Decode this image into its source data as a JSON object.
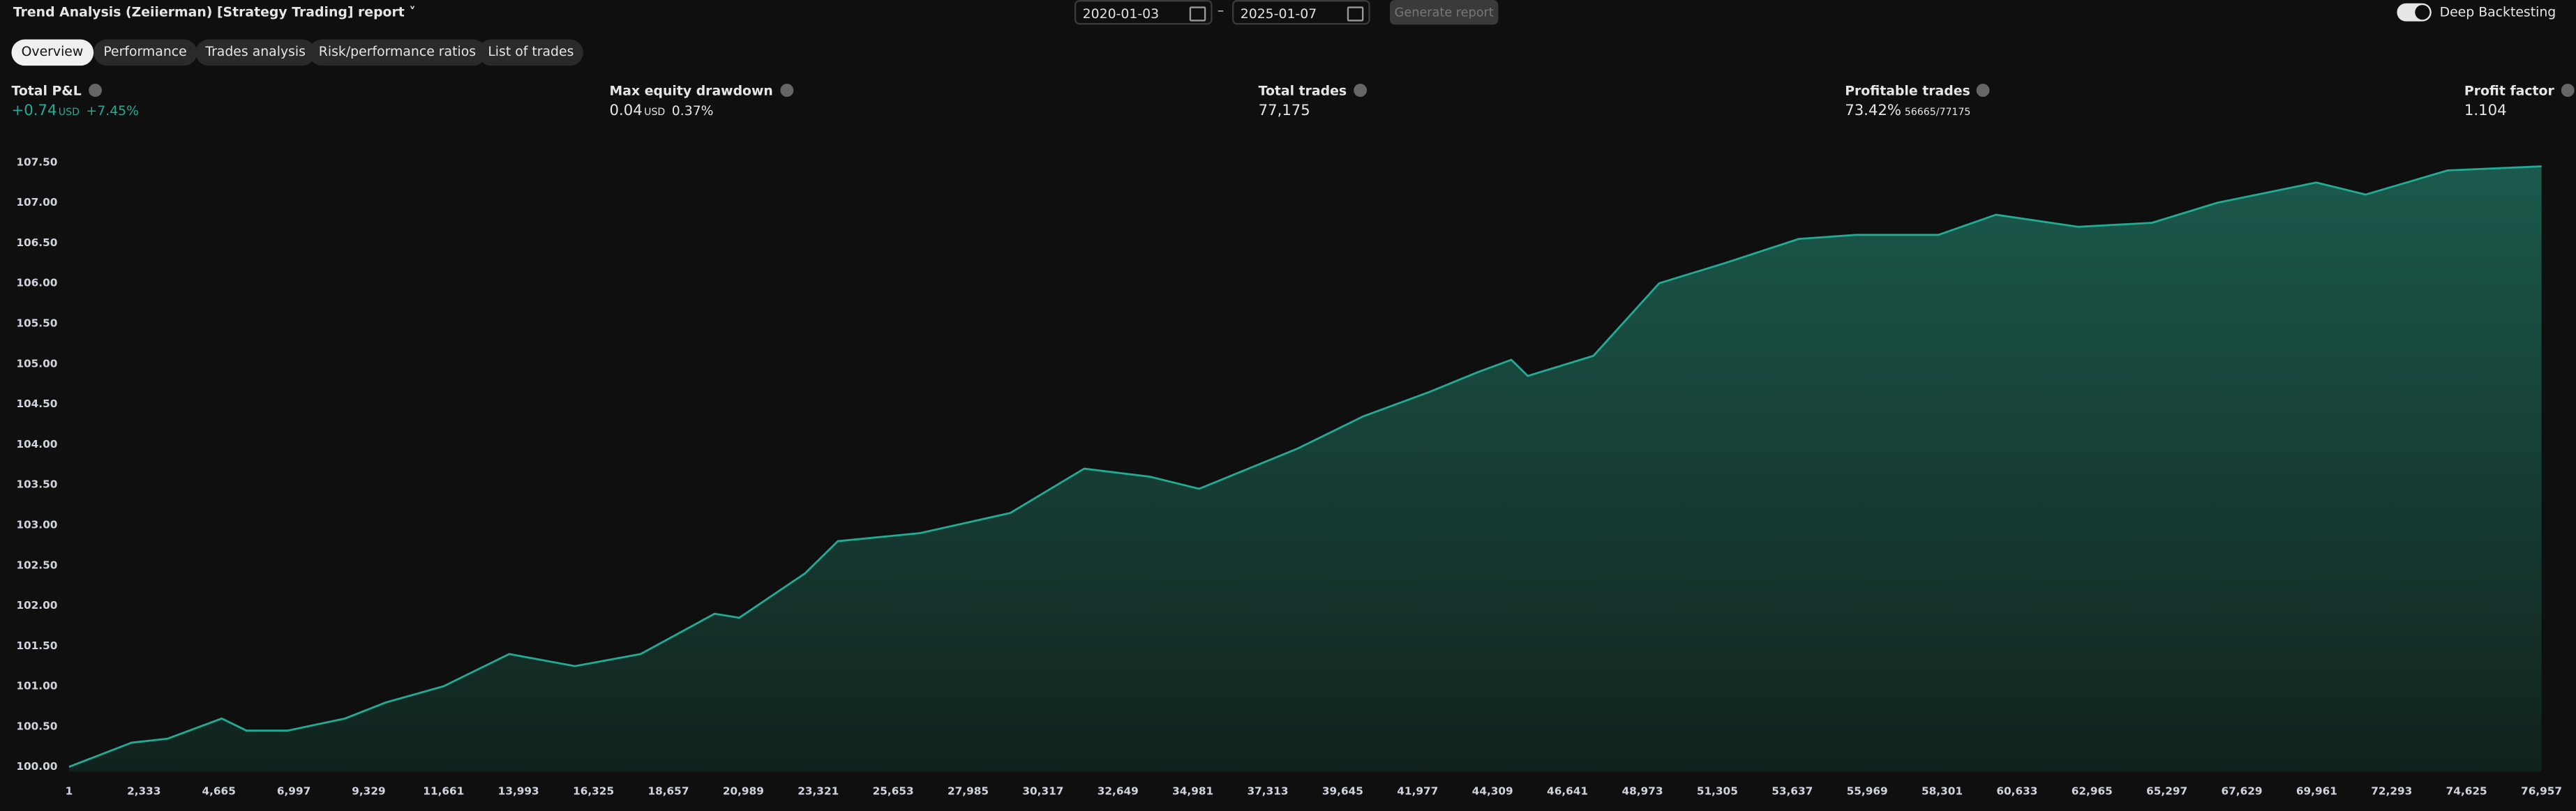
{
  "header": {
    "title": "Trend Analysis (Zeiierman) [Strategy Trading] report",
    "start_date": "2020-01-03",
    "end_date": "2025-01-07",
    "generate_button": "Generate report",
    "toggle_label": "Deep Backtesting"
  },
  "tabs": [
    "Overview",
    "Performance",
    "Trades analysis",
    "Risk/performance ratios",
    "List of trades"
  ],
  "metrics": [
    {
      "label": "Total P&L",
      "value": "+0.74",
      "unit": "USD",
      "extra": "+7.45%"
    },
    {
      "label": "Max equity drawdown",
      "value": "0.04",
      "unit": "USD",
      "extra": "0.37%"
    },
    {
      "label": "Total trades",
      "value": "77,175"
    },
    {
      "label": "Profitable trades",
      "value": "73.42%",
      "extra": "56665/77175"
    },
    {
      "label": "Profit factor",
      "value": "1.104"
    }
  ],
  "chart_data": {
    "type": "area",
    "color": "#22ab94",
    "grid": false,
    "x": [
      1,
      1944,
      3069,
      4756,
      5523,
      6802,
      8591,
      9869,
      11659,
      13704,
      15749,
      17794,
      20095,
      20862,
      22907,
      23929,
      26486,
      29298,
      31599,
      33644,
      35178,
      36712,
      38246,
      40291,
      42337,
      43870,
      44893,
      45404,
      47449,
      49495,
      51540,
      53841,
      55631,
      58187,
      59977,
      62533,
      64834,
      66880,
      69947,
      71481,
      74038,
      76957
    ],
    "values": [
      100.0,
      100.3,
      100.35,
      100.6,
      100.45,
      100.45,
      100.6,
      100.8,
      101.0,
      101.4,
      101.25,
      101.4,
      101.9,
      101.85,
      102.4,
      102.8,
      102.9,
      103.15,
      103.7,
      103.6,
      103.45,
      103.7,
      103.95,
      104.35,
      104.65,
      104.9,
      105.05,
      104.85,
      105.1,
      106.0,
      106.25,
      106.55,
      106.6,
      106.6,
      106.85,
      106.7,
      106.75,
      107.0,
      107.25,
      107.1,
      107.4,
      107.45
    ],
    "xlim": [
      1,
      76957
    ],
    "ylim": [
      99.94,
      107.64
    ],
    "xticks": [
      1,
      {
        "value": 2333,
        "label": "2,333"
      },
      {
        "value": 4665,
        "label": "4,665"
      },
      {
        "value": 6997,
        "label": "6,997"
      },
      {
        "value": 9329,
        "label": "9,329"
      },
      {
        "value": 11661,
        "label": "11,661"
      },
      {
        "value": 13993,
        "label": "13,993"
      },
      {
        "value": 16325,
        "label": "16,325"
      },
      {
        "value": 18657,
        "label": "18,657"
      },
      {
        "value": 20989,
        "label": "20,989"
      },
      {
        "value": 23321,
        "label": "23,321"
      },
      {
        "value": 25653,
        "label": "25,653"
      },
      {
        "value": 27985,
        "label": "27,985"
      },
      {
        "value": 30317,
        "label": "30,317"
      },
      {
        "value": 32649,
        "label": "32,649"
      },
      {
        "value": 34981,
        "label": "34,981"
      },
      {
        "value": 37313,
        "label": "37,313"
      },
      {
        "value": 39645,
        "label": "39,645"
      },
      {
        "value": 41977,
        "label": "41,977"
      },
      {
        "value": 44309,
        "label": "44,309"
      },
      {
        "value": 46641,
        "label": "46,641"
      },
      {
        "value": 48973,
        "label": "48,973"
      },
      {
        "value": 51305,
        "label": "51,305"
      },
      {
        "value": 53637,
        "label": "53,637"
      },
      {
        "value": 55969,
        "label": "55,969"
      },
      {
        "value": 58301,
        "label": "58,301"
      },
      {
        "value": 60633,
        "label": "60,633"
      },
      {
        "value": 62965,
        "label": "62,965"
      },
      {
        "value": 65297,
        "label": "65,297"
      },
      {
        "value": 67629,
        "label": "67,629"
      },
      {
        "value": 69961,
        "label": "69,961"
      },
      {
        "value": 72293,
        "label": "72,293"
      },
      {
        "value": 74625,
        "label": "74,625"
      },
      {
        "value": 76957,
        "label": "76,957"
      }
    ],
    "yticks": [
      {
        "value": 100,
        "label": "100.00"
      },
      {
        "value": 100.5,
        "label": "100.50"
      },
      {
        "value": 101,
        "label": "101.00"
      },
      {
        "value": 101.5,
        "label": "101.50"
      },
      {
        "value": 102,
        "label": "102.00"
      },
      {
        "value": 102.5,
        "label": "102.50"
      },
      {
        "value": 103,
        "label": "103.00"
      },
      {
        "value": 103.5,
        "label": "103.50"
      },
      {
        "value": 104,
        "label": "104.00"
      },
      {
        "value": 104.5,
        "label": "104.50"
      },
      {
        "value": 105,
        "label": "105.00"
      },
      {
        "value": 105.5,
        "label": "105.50"
      },
      {
        "value": 106,
        "label": "106.00"
      },
      {
        "value": 106.5,
        "label": "106.50"
      },
      {
        "value": 107,
        "label": "107.00"
      },
      {
        "value": 107.5,
        "label": "107.50"
      }
    ]
  }
}
